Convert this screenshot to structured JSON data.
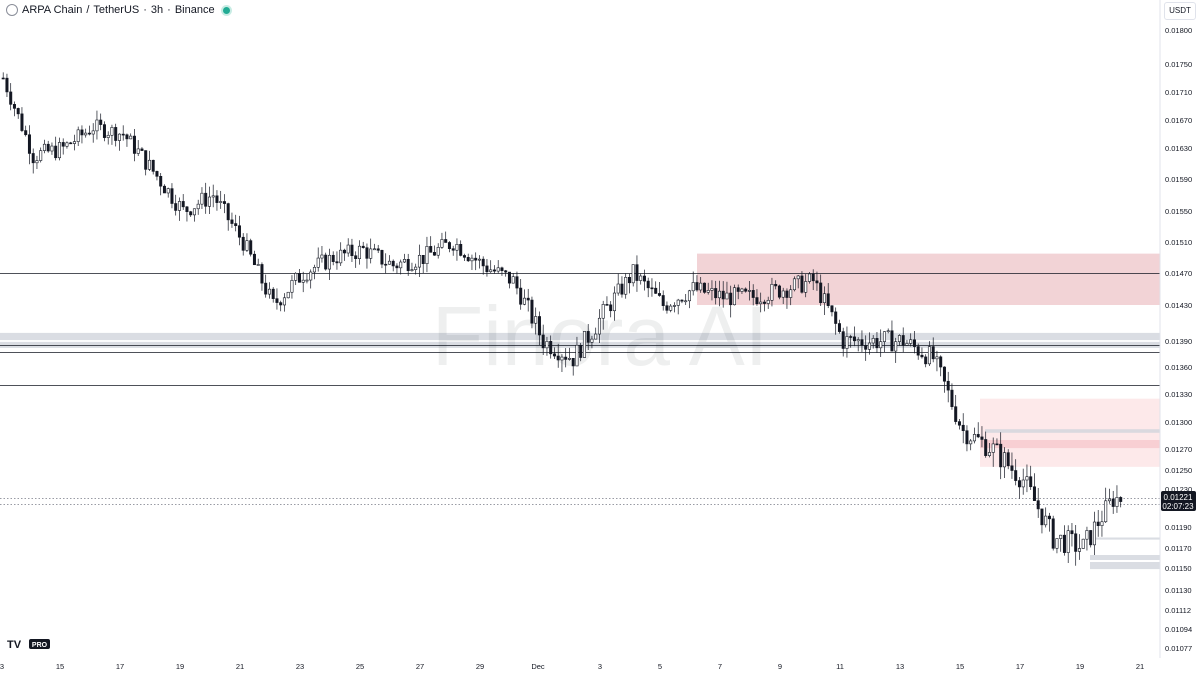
{
  "header": {
    "symbol": "ARPA Chain",
    "separator": "/",
    "quote": "TetherUS",
    "interval": "3h",
    "exchange": "Binance"
  },
  "currency_badge": "USDT",
  "watermark": "Finora AI",
  "tv_logo": {
    "mark": "TV",
    "badge": "PRO"
  },
  "price_tag": {
    "price": "0.01221",
    "countdown": "02:07:23"
  },
  "chart_data": {
    "type": "candlestick",
    "title": "ARPA Chain / TetherUS · 3h · Binance",
    "y_ticks": [
      0.018,
      0.0175,
      0.0171,
      0.0167,
      0.0163,
      0.0159,
      0.0155,
      0.0151,
      0.0147,
      0.0143,
      0.0139,
      0.0136,
      0.0133,
      0.013,
      0.0127,
      0.0125,
      0.0123,
      0.0119,
      0.0117,
      0.0115,
      0.0113,
      0.01112,
      0.01094,
      0.01077
    ],
    "y_tick_labels": [
      "0.01800",
      "0.01750",
      "0.01710",
      "0.01670",
      "0.01630",
      "0.01590",
      "0.01550",
      "0.01510",
      "0.01470",
      "0.01430",
      "0.01390",
      "0.01360",
      "0.01330",
      "0.01300",
      "0.01270",
      "0.01250",
      "0.01230",
      "0.01190",
      "0.01170",
      "0.01150",
      "0.01130",
      "0.01112",
      "0.01094",
      "0.01077"
    ],
    "x_labels": [
      "3",
      "15",
      "17",
      "19",
      "21",
      "23",
      "25",
      "27",
      "29",
      "Dec",
      "3",
      "5",
      "7",
      "9",
      "11",
      "13",
      "15",
      "17",
      "19",
      "21"
    ],
    "last_price": 0.01221,
    "horizontal_lines": [
      0.0147,
      0.01385,
      0.01377,
      0.0134
    ],
    "dotted_lines": [
      0.01221,
      0.01214
    ],
    "gray_bands": [
      [
        0.01391,
        0.01399
      ],
      [
        0.01382,
        0.01389
      ],
      [
        0.01288,
        0.01292
      ],
      [
        0.01178,
        0.0118
      ],
      [
        0.01158,
        0.01163
      ],
      [
        0.01149,
        0.01156
      ]
    ],
    "zones": [
      {
        "from": 0.0143,
        "to": 0.01495,
        "color": "#f2d3d6"
      },
      {
        "from": 0.01253,
        "to": 0.01325,
        "color": "#fde9ea"
      },
      {
        "from": 0.01271,
        "to": 0.0128,
        "color": "#f8cfd3"
      }
    ],
    "close_path": [
      [
        "Nov 13",
        0.0173
      ],
      [
        "Nov 14",
        0.0162
      ],
      [
        "Nov 15",
        0.0163
      ],
      [
        "Nov 16",
        0.0166
      ],
      [
        "Nov 17",
        0.0165
      ],
      [
        "Nov 18",
        0.016
      ],
      [
        "Nov 19",
        0.0155
      ],
      [
        "Nov 20",
        0.0157
      ],
      [
        "Nov 21",
        0.0151
      ],
      [
        "Nov 22",
        0.0143
      ],
      [
        "Nov 23",
        0.0147
      ],
      [
        "Nov 24",
        0.0149
      ],
      [
        "Nov 25",
        0.015
      ],
      [
        "Nov 26",
        0.0148
      ],
      [
        "Nov 27",
        0.0149
      ],
      [
        "Nov 28",
        0.0151
      ],
      [
        "Nov 29",
        0.0148
      ],
      [
        "Nov 30",
        0.0146
      ],
      [
        "Dec 1",
        0.0139
      ],
      [
        "Dec 2",
        0.0137
      ],
      [
        "Dec 3",
        0.0142
      ],
      [
        "Dec 4",
        0.0147
      ],
      [
        "Dec 5",
        0.0143
      ],
      [
        "Dec 6",
        0.0145
      ],
      [
        "Dec 7",
        0.0144
      ],
      [
        "Dec 8",
        0.0144
      ],
      [
        "Dec 9",
        0.0145
      ],
      [
        "Dec 10",
        0.0146
      ],
      [
        "Dec 11",
        0.0139
      ],
      [
        "Dec 12",
        0.0139
      ],
      [
        "Dec 13",
        0.0139
      ],
      [
        "Dec 14",
        0.0137
      ],
      [
        "Dec 15",
        0.0129
      ],
      [
        "Dec 16",
        0.0127
      ],
      [
        "Dec 17",
        0.0124
      ],
      [
        "Dec 18",
        0.0118
      ],
      [
        "Dec 19",
        0.0117
      ],
      [
        "Dec 20",
        0.0122
      ]
    ]
  }
}
